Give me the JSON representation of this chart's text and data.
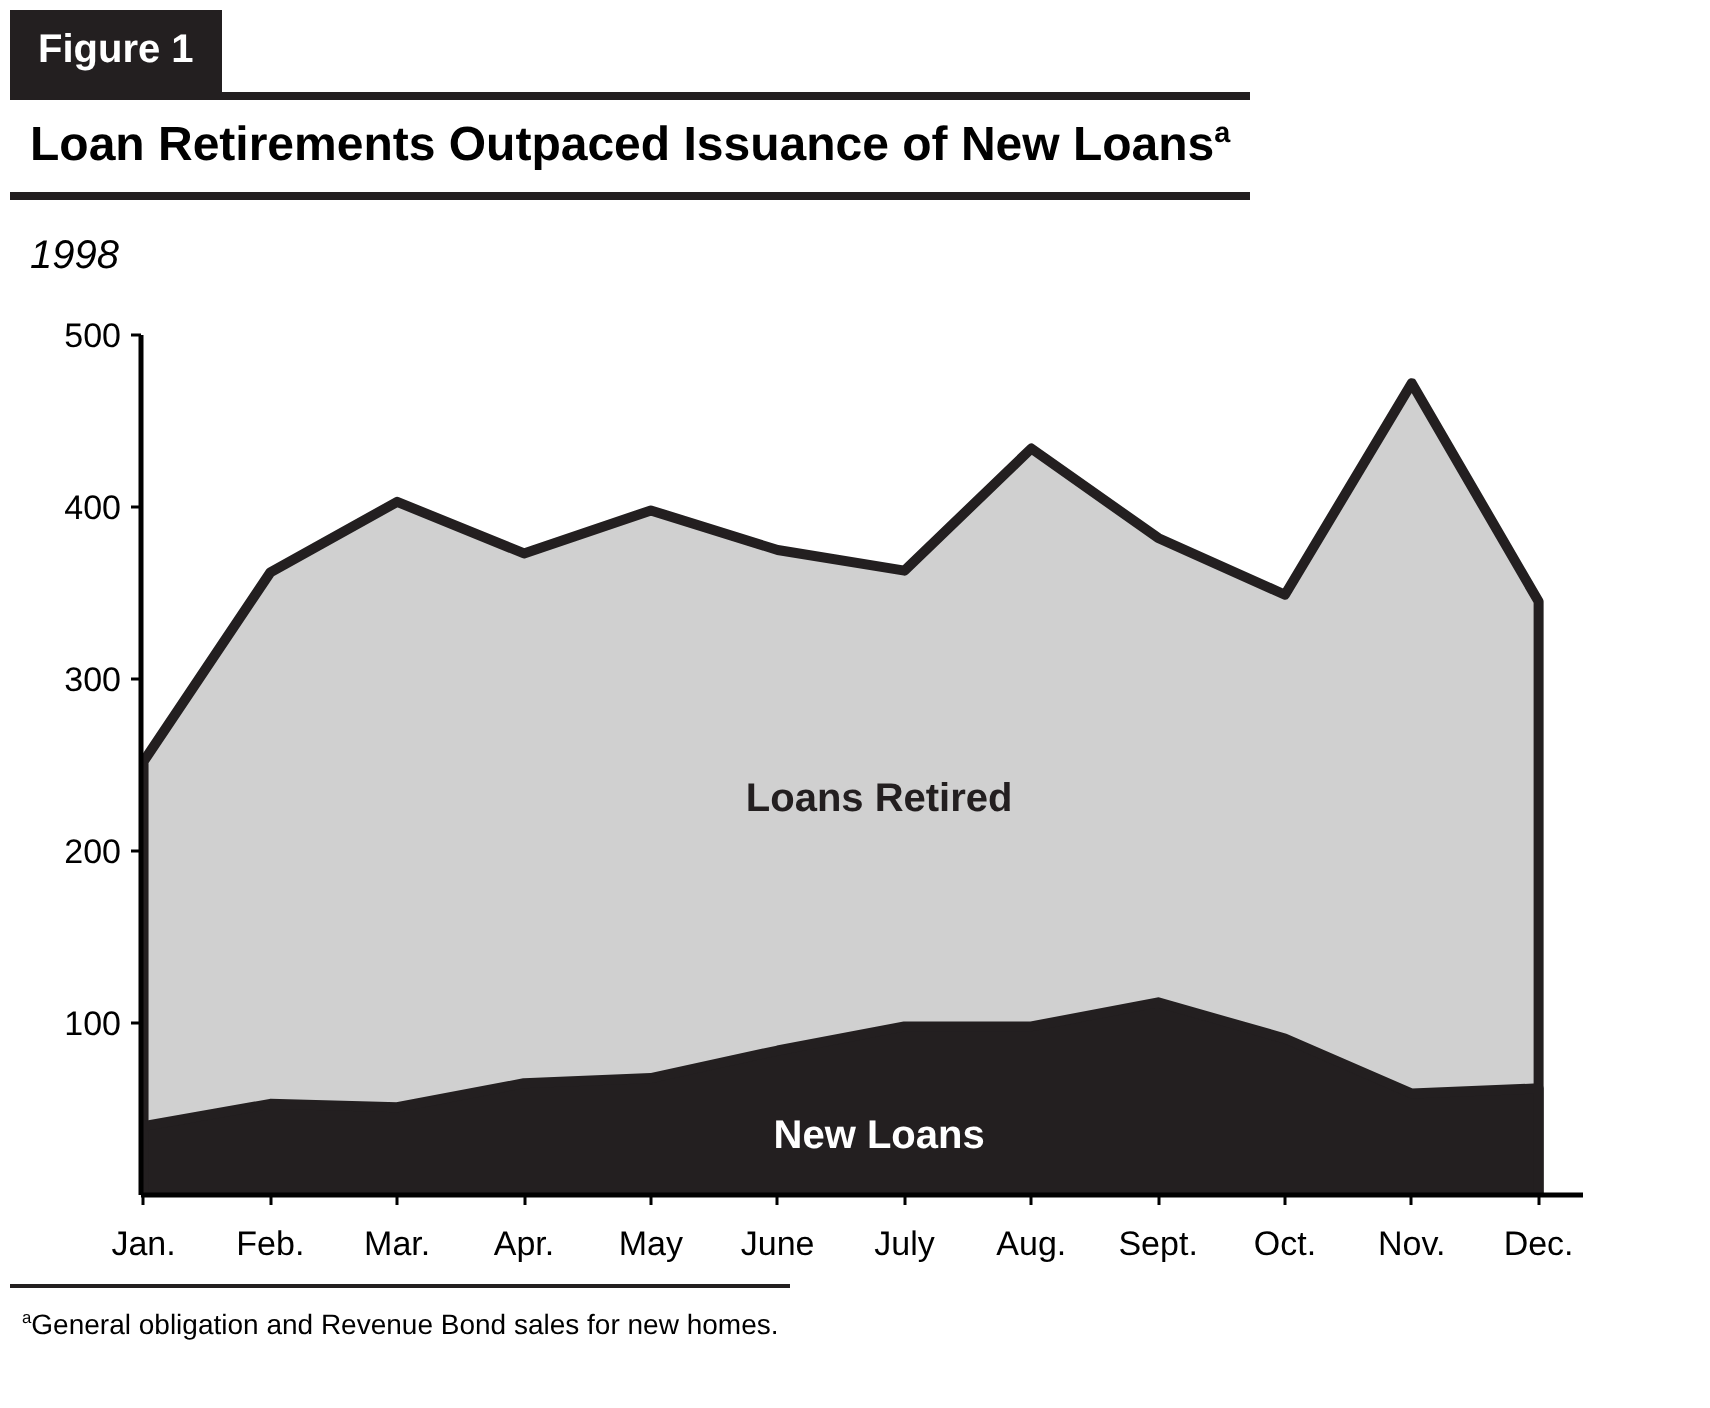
{
  "chart_data": {
    "type": "area",
    "title": "Loan Retirements Outpaced Issuance of New Loans$^{a}$",
    "subtitle": "1998",
    "categories": [
      "Jan.",
      "Feb.",
      "Mar.",
      "Apr.",
      "May",
      "June",
      "July",
      "Aug.",
      "Sept.",
      "Oct.",
      "Nov.",
      "Dec."
    ],
    "series": [
      {
        "name": "Loans Retired",
        "color": "#d0d0d0",
        "values": [
          252,
          362,
          403,
          373,
          398,
          375,
          363,
          434,
          382,
          349,
          472,
          345
        ]
      },
      {
        "name": "New Loans",
        "color": "#231f20",
        "values": [
          40,
          53,
          51,
          65,
          68,
          84,
          98,
          98,
          112,
          91,
          59,
          62
        ]
      }
    ],
    "ylim": [
      0,
      500
    ],
    "yticks": [
      100,
      200,
      300,
      400,
      500
    ],
    "grid": false,
    "annotations": [
      "Figure 1",
      "$^{a}$General obligation and Revenue Bond sales for new homes."
    ]
  }
}
